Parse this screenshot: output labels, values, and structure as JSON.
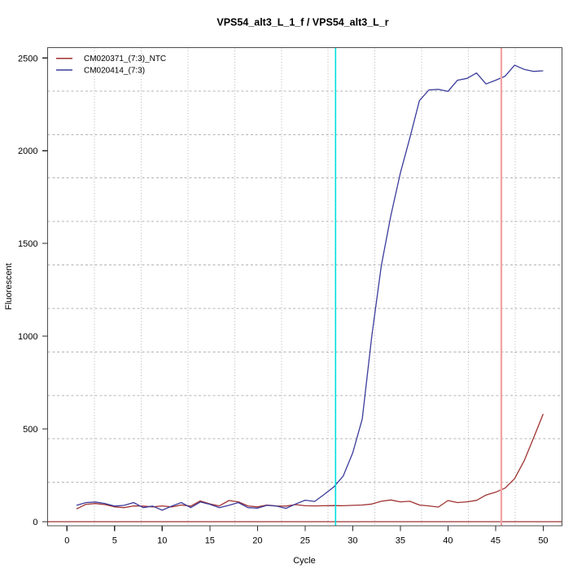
{
  "window": {
    "background": "#ffffff"
  },
  "chart_data": {
    "type": "line",
    "title": "VPS54_alt3_L_1_f / VPS54_alt3_L_r",
    "xlabel": "Cycle",
    "ylabel": "Fluorescent",
    "x_ticks": [
      0,
      5,
      10,
      15,
      20,
      25,
      30,
      35,
      40,
      45,
      50
    ],
    "y_ticks": [
      0,
      500,
      1000,
      1500,
      2000,
      2500
    ],
    "xlim": [
      -2.03,
      51.97
    ],
    "ylim": [
      -22,
      2556
    ],
    "grid": {
      "on": true,
      "divisions": 11,
      "line_style": "dotted",
      "color": "#b4b4b4"
    },
    "legend_position": "top-left",
    "x": [
      1,
      2,
      3,
      4,
      5,
      6,
      7,
      8,
      9,
      10,
      11,
      12,
      13,
      14,
      15,
      16,
      17,
      18,
      19,
      20,
      21,
      22,
      23,
      24,
      25,
      26,
      27,
      28,
      29,
      30,
      31,
      32,
      33,
      34,
      35,
      36,
      37,
      38,
      39,
      40,
      41,
      42,
      43,
      44,
      45,
      46,
      47,
      48,
      49,
      50
    ],
    "series": [
      {
        "name": "CM020371_(7:3)_NTC",
        "color": "#a03232",
        "values": [
          69,
          94,
          98,
          92,
          80,
          76,
          85,
          84,
          80,
          85,
          80,
          90,
          84,
          112,
          96,
          85,
          114,
          107,
          85,
          80,
          90,
          85,
          84,
          92,
          86,
          85,
          86,
          87,
          86,
          88,
          90,
          95,
          110,
          117,
          107,
          110,
          90,
          85,
          79,
          114,
          103,
          107,
          115,
          144,
          159,
          181,
          232,
          328,
          453,
          581
        ]
      },
      {
        "name": "CM020414_(7:3)",
        "color": "#3b3b9c",
        "values": [
          88,
          103,
          106,
          98,
          84,
          88,
          103,
          76,
          84,
          62,
          84,
          103,
          76,
          106,
          94,
          76,
          88,
          103,
          76,
          73,
          88,
          84,
          72,
          95,
          116,
          109,
          147,
          187,
          246,
          371,
          554,
          1000,
          1380,
          1650,
          1880,
          2070,
          2270,
          2328,
          2331,
          2320,
          2380,
          2390,
          2419,
          2360,
          2380,
          2402,
          2461,
          2439,
          2428,
          2431
        ]
      }
    ],
    "annotations": {
      "vlines": [
        {
          "x": 28.2,
          "color": "#00dede",
          "width": 1.6
        },
        {
          "x": 45.6,
          "color": "#f0a3a3",
          "width": 2.2
        }
      ],
      "hlines": [
        {
          "y": 0,
          "color": "#a03232",
          "width": 1.3
        }
      ]
    }
  }
}
